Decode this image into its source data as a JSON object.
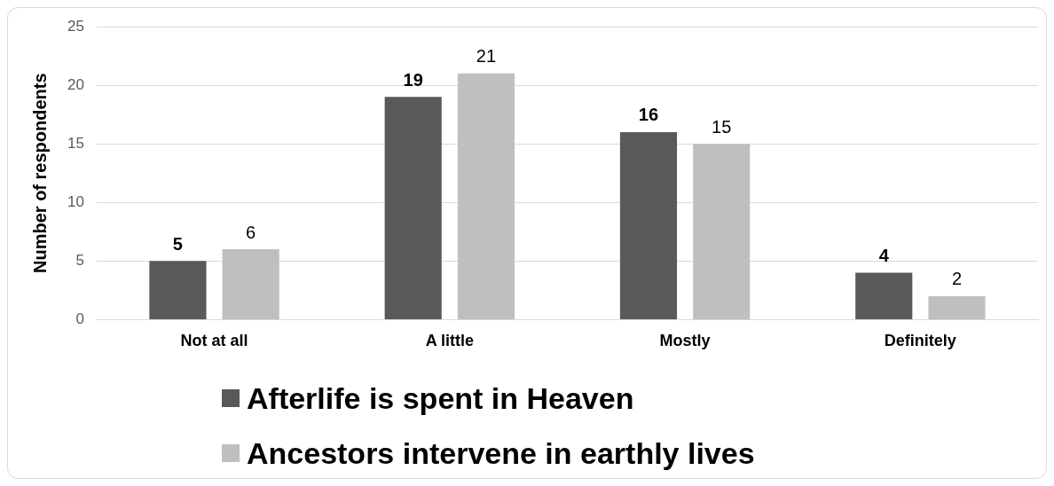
{
  "chart_data": {
    "type": "bar",
    "ylabel": "Number of respondents",
    "categories": [
      "Not at all",
      "A little",
      "Mostly",
      "Definitely"
    ],
    "series": [
      {
        "name": "Afterlife is spent in Heaven",
        "color": "#595959",
        "values": [
          5,
          19,
          16,
          4
        ]
      },
      {
        "name": "Ancestors intervene in earthly lives",
        "color": "#bfbfbf",
        "values": [
          6,
          21,
          15,
          2
        ]
      }
    ],
    "ylim": [
      0,
      25
    ],
    "yticks": [
      0,
      5,
      10,
      15,
      20,
      25
    ],
    "grid": "y",
    "data_labels": true,
    "legend": "bottom"
  }
}
